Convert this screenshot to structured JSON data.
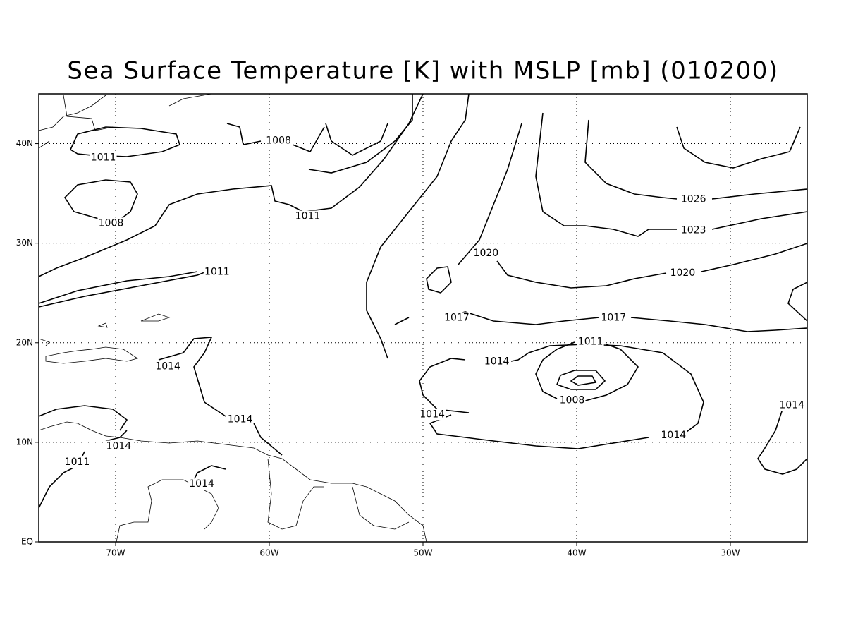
{
  "chart_data": {
    "type": "contour-map",
    "title": "Sea Surface Temperature [K] with MSLP [mb] (010200)",
    "xlim": [
      -75,
      -25
    ],
    "ylim": [
      0,
      45
    ],
    "xticks": [
      {
        "value": -70,
        "label": "70W"
      },
      {
        "value": -60,
        "label": "60W"
      },
      {
        "value": -50,
        "label": "50W"
      },
      {
        "value": -40,
        "label": "40W"
      },
      {
        "value": -30,
        "label": "30W"
      }
    ],
    "yticks": [
      {
        "value": 0,
        "label": "EQ"
      },
      {
        "value": 10,
        "label": "10N"
      },
      {
        "value": 20,
        "label": "20N"
      },
      {
        "value": 30,
        "label": "30N"
      },
      {
        "value": 40,
        "label": "40N"
      }
    ],
    "grid": true,
    "contour_labels": [
      {
        "value": 1008,
        "lon": -59.4,
        "lat": 40.3
      },
      {
        "value": 1011,
        "lon": -70.8,
        "lat": 38.6
      },
      {
        "value": 1008,
        "lon": -70.3,
        "lat": 32.0
      },
      {
        "value": 1011,
        "lon": -57.5,
        "lat": 32.7
      },
      {
        "value": 1011,
        "lon": -63.4,
        "lat": 27.1
      },
      {
        "value": 1026,
        "lon": -32.4,
        "lat": 34.4
      },
      {
        "value": 1023,
        "lon": -32.4,
        "lat": 31.3
      },
      {
        "value": 1020,
        "lon": -45.9,
        "lat": 29.0
      },
      {
        "value": 1020,
        "lon": -33.1,
        "lat": 27.0
      },
      {
        "value": 1017,
        "lon": -47.8,
        "lat": 22.5
      },
      {
        "value": 1017,
        "lon": -37.6,
        "lat": 22.5
      },
      {
        "value": 1011,
        "lon": -39.1,
        "lat": 20.1
      },
      {
        "value": 1014,
        "lon": -45.2,
        "lat": 18.1
      },
      {
        "value": 1014,
        "lon": -66.6,
        "lat": 17.6
      },
      {
        "value": 1008,
        "lon": -40.3,
        "lat": 14.2
      },
      {
        "value": 1014,
        "lon": -49.4,
        "lat": 12.8
      },
      {
        "value": 1014,
        "lon": -61.9,
        "lat": 12.3
      },
      {
        "value": 1014,
        "lon": -26.0,
        "lat": 13.7
      },
      {
        "value": 1014,
        "lon": -33.7,
        "lat": 10.7
      },
      {
        "value": 1014,
        "lon": -69.8,
        "lat": 9.6
      },
      {
        "value": 1011,
        "lon": -72.5,
        "lat": 8.0
      },
      {
        "value": 1014,
        "lon": -64.4,
        "lat": 5.8
      }
    ]
  }
}
